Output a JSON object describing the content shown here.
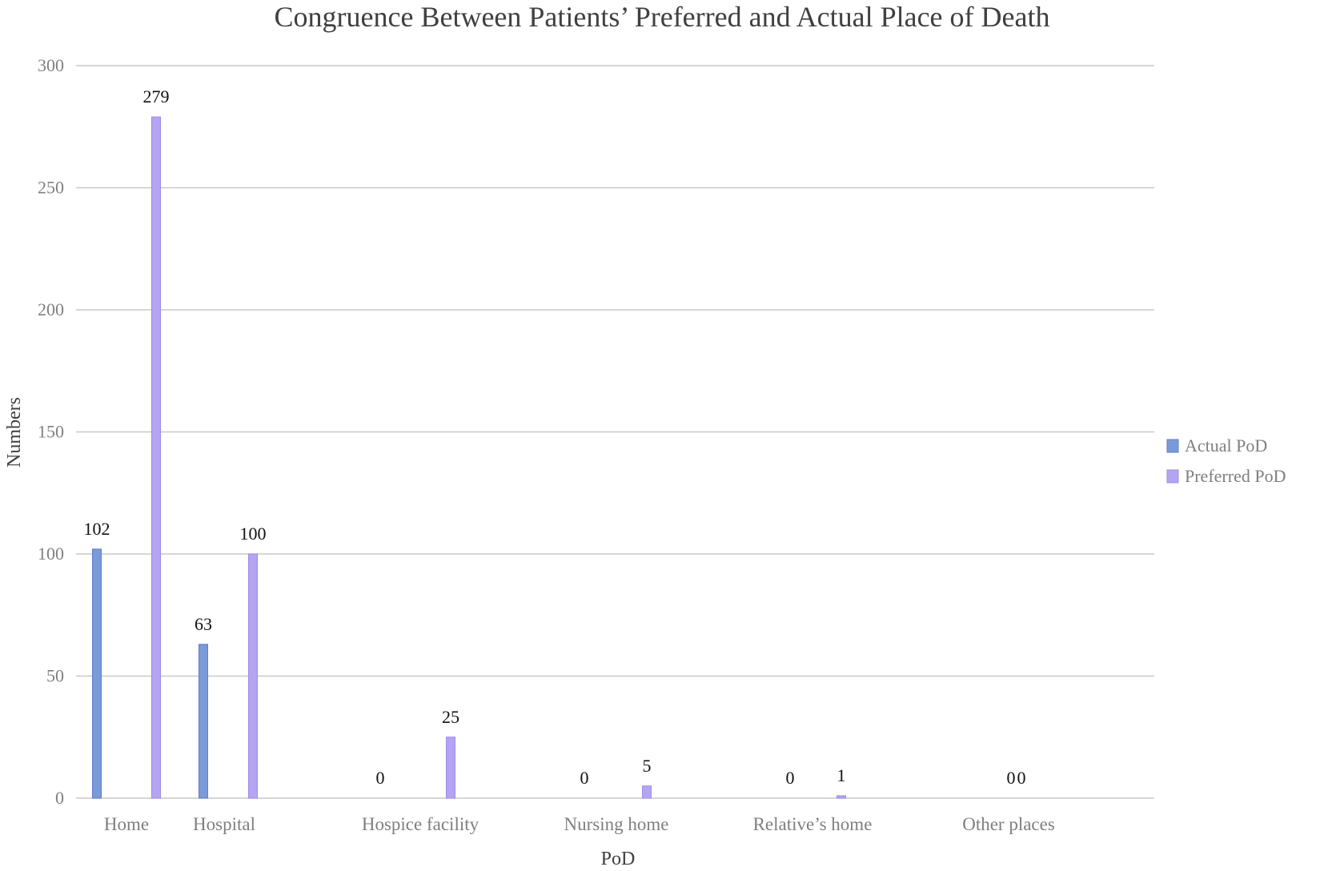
{
  "chart_data": {
    "type": "bar",
    "title": "Congruence Between Patients’ Preferred and Actual Place of Death",
    "xlabel": "PoD",
    "ylabel": "Numbers",
    "ylim": [
      0,
      300
    ],
    "yticks": [
      0,
      50,
      100,
      150,
      200,
      250,
      300
    ],
    "grid": true,
    "legend_position": "right",
    "categories": [
      "Home",
      "Hospital",
      "Hospice facility",
      "Nursing home",
      "Relative’s home",
      "Other places"
    ],
    "series": [
      {
        "name": "Actual PoD",
        "color": "#7a9bd8",
        "values": [
          102,
          63,
          0,
          0,
          0,
          0
        ],
        "labels": [
          "102",
          "63",
          "0",
          "0",
          "0",
          "0"
        ]
      },
      {
        "name": "Preferred PoD",
        "color": "#b4a4f2",
        "values": [
          279,
          100,
          25,
          5,
          1,
          0
        ],
        "labels": [
          "279",
          "100",
          "25",
          "5",
          "1",
          "0"
        ]
      }
    ]
  }
}
